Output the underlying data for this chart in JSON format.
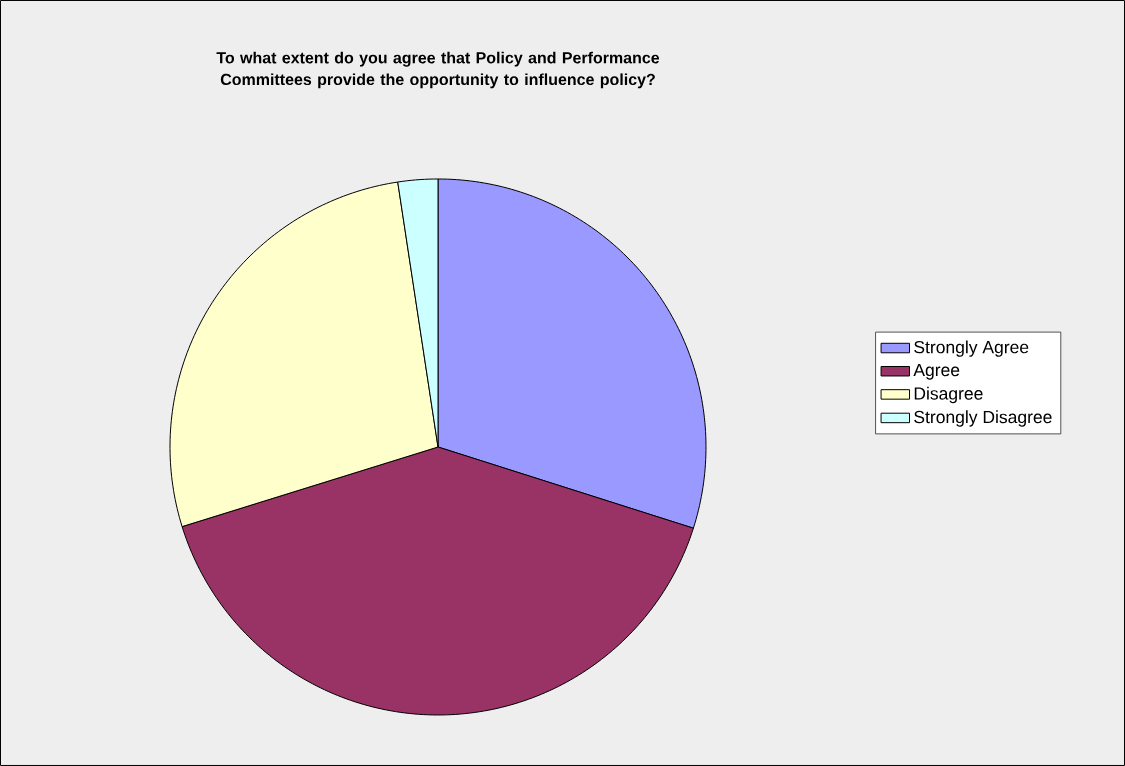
{
  "chart_data": {
    "type": "pie",
    "title": "To what extent do you agree that Policy and Performance Committees provide the opportunity to influence policy?",
    "categories": [
      "Strongly Agree",
      "Agree",
      "Disagree",
      "Strongly Disagree"
    ],
    "values": [
      29.9,
      40.3,
      27.4,
      2.4
    ],
    "colors": [
      "#9999ff",
      "#993366",
      "#ffffcc",
      "#ccffff"
    ],
    "legend": "right"
  }
}
